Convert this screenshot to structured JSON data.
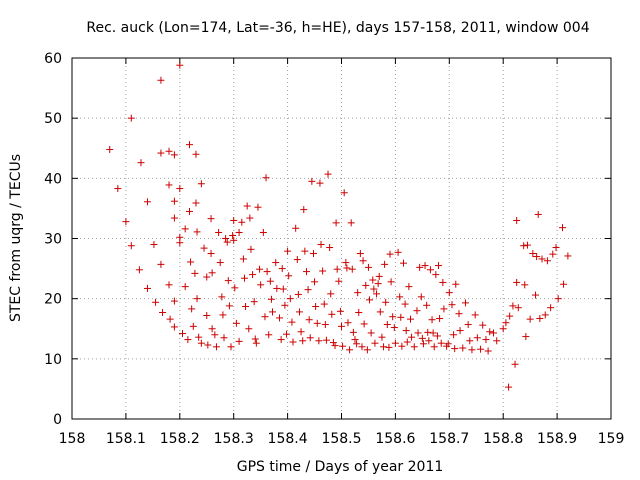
{
  "chart_data": {
    "type": "scatter",
    "title": "Rec. auck (Lon=174, Lat=-36, h=HE), days 157-158, 2011, window 004",
    "xlabel": "GPS time / Days of year 2011",
    "ylabel": "STEC from uqrg / TECUs",
    "xlim": [
      158,
      159
    ],
    "ylim": [
      0,
      60
    ],
    "x_ticks": [
      "158",
      "158.1",
      "158.2",
      "158.3",
      "158.4",
      "158.5",
      "158.6",
      "158.7",
      "158.8",
      "158.9",
      "159"
    ],
    "y_ticks": [
      "0",
      "10",
      "20",
      "30",
      "40",
      "50",
      "60"
    ],
    "grid": true,
    "legend": "none",
    "marker": "+",
    "color": "#cc0000",
    "series": [
      {
        "points": [
          [
            158.07,
            44.8
          ],
          [
            158.085,
            38.3
          ],
          [
            158.1,
            32.8
          ],
          [
            158.11,
            28.8
          ],
          [
            158.11,
            50.0
          ],
          [
            158.125,
            24.8
          ],
          [
            158.128,
            42.6
          ],
          [
            158.14,
            36.1
          ],
          [
            158.14,
            21.7
          ],
          [
            158.152,
            29.0
          ],
          [
            158.155,
            19.4
          ],
          [
            158.165,
            56.3
          ],
          [
            158.165,
            44.2
          ],
          [
            158.165,
            25.7
          ],
          [
            158.168,
            17.7
          ],
          [
            158.18,
            44.5
          ],
          [
            158.18,
            38.9
          ],
          [
            158.18,
            22.3
          ],
          [
            158.182,
            16.6
          ],
          [
            158.19,
            43.9
          ],
          [
            158.19,
            36.2
          ],
          [
            158.19,
            33.4
          ],
          [
            158.19,
            19.6
          ],
          [
            158.19,
            15.3
          ],
          [
            158.2,
            58.8
          ],
          [
            158.2,
            38.3
          ],
          [
            158.2,
            30.2
          ],
          [
            158.2,
            29.3
          ],
          [
            158.205,
            14.2
          ],
          [
            158.21,
            31.6
          ],
          [
            158.21,
            22.0
          ],
          [
            158.215,
            13.2
          ],
          [
            158.218,
            45.6
          ],
          [
            158.218,
            34.5
          ],
          [
            158.22,
            26.1
          ],
          [
            158.222,
            18.3
          ],
          [
            158.225,
            15.4
          ],
          [
            158.228,
            24.2
          ],
          [
            158.23,
            44.0
          ],
          [
            158.23,
            35.9
          ],
          [
            158.232,
            31.1
          ],
          [
            158.232,
            20.0
          ],
          [
            158.235,
            13.6
          ],
          [
            158.24,
            12.6
          ],
          [
            158.24,
            39.1
          ],
          [
            158.245,
            28.4
          ],
          [
            158.25,
            23.6
          ],
          [
            158.25,
            17.2
          ],
          [
            158.252,
            12.3
          ],
          [
            158.258,
            33.3
          ],
          [
            158.258,
            27.5
          ],
          [
            158.26,
            24.3
          ],
          [
            158.26,
            15.0
          ],
          [
            158.265,
            14.0
          ],
          [
            158.268,
            12.0
          ],
          [
            158.272,
            31.0
          ],
          [
            158.275,
            26.0
          ],
          [
            158.278,
            20.3
          ],
          [
            158.28,
            17.3
          ],
          [
            158.282,
            13.5
          ],
          [
            158.285,
            30.0
          ],
          [
            158.288,
            29.4
          ],
          [
            158.29,
            23.0
          ],
          [
            158.292,
            18.8
          ],
          [
            158.295,
            12.0
          ],
          [
            158.298,
            30.5
          ],
          [
            158.3,
            33.0
          ],
          [
            158.3,
            29.7
          ],
          [
            158.302,
            21.8
          ],
          [
            158.305,
            15.9
          ],
          [
            158.31,
            31.0
          ],
          [
            158.31,
            12.9
          ],
          [
            158.315,
            32.7
          ],
          [
            158.318,
            26.6
          ],
          [
            158.32,
            23.4
          ],
          [
            158.322,
            18.7
          ],
          [
            158.325,
            35.4
          ],
          [
            158.328,
            15.0
          ],
          [
            158.33,
            33.4
          ],
          [
            158.332,
            28.2
          ],
          [
            158.335,
            24.0
          ],
          [
            158.338,
            19.5
          ],
          [
            158.34,
            13.3
          ],
          [
            158.342,
            12.6
          ],
          [
            158.345,
            35.2
          ],
          [
            158.348,
            24.9
          ],
          [
            158.35,
            22.3
          ],
          [
            158.355,
            31.0
          ],
          [
            158.358,
            17.0
          ],
          [
            158.36,
            40.1
          ],
          [
            158.362,
            24.5
          ],
          [
            158.365,
            14.0
          ],
          [
            158.368,
            22.9
          ],
          [
            158.37,
            19.9
          ],
          [
            158.372,
            17.8
          ],
          [
            158.378,
            26.0
          ],
          [
            158.38,
            21.7
          ],
          [
            158.385,
            16.8
          ],
          [
            158.388,
            13.2
          ],
          [
            158.39,
            25.0
          ],
          [
            158.392,
            21.6
          ],
          [
            158.395,
            18.9
          ],
          [
            158.398,
            14.1
          ],
          [
            158.4,
            27.9
          ],
          [
            158.402,
            23.8
          ],
          [
            158.405,
            20.0
          ],
          [
            158.408,
            16.1
          ],
          [
            158.41,
            12.8
          ],
          [
            158.415,
            31.7
          ],
          [
            158.418,
            26.5
          ],
          [
            158.42,
            20.7
          ],
          [
            158.422,
            17.8
          ],
          [
            158.425,
            14.5
          ],
          [
            158.428,
            13.0
          ],
          [
            158.43,
            34.8
          ],
          [
            158.432,
            27.9
          ],
          [
            158.435,
            24.5
          ],
          [
            158.438,
            21.5
          ],
          [
            158.44,
            16.5
          ],
          [
            158.442,
            13.5
          ],
          [
            158.445,
            39.5
          ],
          [
            158.448,
            27.5
          ],
          [
            158.45,
            22.8
          ],
          [
            158.452,
            18.7
          ],
          [
            158.455,
            15.9
          ],
          [
            158.458,
            13.0
          ],
          [
            158.46,
            39.2
          ],
          [
            158.462,
            29.0
          ],
          [
            158.465,
            24.6
          ],
          [
            158.468,
            19.1
          ],
          [
            158.47,
            15.7
          ],
          [
            158.472,
            13.1
          ],
          [
            158.475,
            40.7
          ],
          [
            158.478,
            28.5
          ],
          [
            158.48,
            20.8
          ],
          [
            158.482,
            17.4
          ],
          [
            158.485,
            12.7
          ],
          [
            158.488,
            12.2
          ],
          [
            158.49,
            32.6
          ],
          [
            158.492,
            24.9
          ],
          [
            158.495,
            22.9
          ],
          [
            158.498,
            17.9
          ],
          [
            158.5,
            15.4
          ],
          [
            158.502,
            12.1
          ],
          [
            158.505,
            37.6
          ],
          [
            158.508,
            26.0
          ],
          [
            158.51,
            25.1
          ],
          [
            158.512,
            16.0
          ],
          [
            158.515,
            11.5
          ],
          [
            158.518,
            32.6
          ],
          [
            158.52,
            24.9
          ],
          [
            158.522,
            14.4
          ],
          [
            158.525,
            13.2
          ],
          [
            158.528,
            12.5
          ],
          [
            158.53,
            21.0
          ],
          [
            158.532,
            17.7
          ],
          [
            158.535,
            27.5
          ],
          [
            158.538,
            12.0
          ],
          [
            158.54,
            26.3
          ],
          [
            158.542,
            15.8
          ],
          [
            158.545,
            22.2
          ],
          [
            158.548,
            11.5
          ],
          [
            158.55,
            25.2
          ],
          [
            158.552,
            19.8
          ],
          [
            158.555,
            14.3
          ],
          [
            158.558,
            23.1
          ],
          [
            158.56,
            21.6
          ],
          [
            158.562,
            12.6
          ],
          [
            158.565,
            20.8
          ],
          [
            158.568,
            22.5
          ],
          [
            158.57,
            23.7
          ],
          [
            158.572,
            17.8
          ],
          [
            158.575,
            13.6
          ],
          [
            158.578,
            12.0
          ],
          [
            158.58,
            25.7
          ],
          [
            158.582,
            19.4
          ],
          [
            158.585,
            15.7
          ],
          [
            158.588,
            11.9
          ],
          [
            158.59,
            27.4
          ],
          [
            158.592,
            22.8
          ],
          [
            158.595,
            17.0
          ],
          [
            158.598,
            15.2
          ],
          [
            158.6,
            12.6
          ],
          [
            158.605,
            27.7
          ],
          [
            158.608,
            20.3
          ],
          [
            158.61,
            16.9
          ],
          [
            158.612,
            12.1
          ],
          [
            158.615,
            25.9
          ],
          [
            158.618,
            19.1
          ],
          [
            158.62,
            14.7
          ],
          [
            158.622,
            12.8
          ],
          [
            158.625,
            22.0
          ],
          [
            158.628,
            16.6
          ],
          [
            158.63,
            13.6
          ],
          [
            158.635,
            12.0
          ],
          [
            158.64,
            18.0
          ],
          [
            158.642,
            14.3
          ],
          [
            158.645,
            25.2
          ],
          [
            158.648,
            20.3
          ],
          [
            158.65,
            13.4
          ],
          [
            158.652,
            12.5
          ],
          [
            158.655,
            25.5
          ],
          [
            158.658,
            18.9
          ],
          [
            158.66,
            14.4
          ],
          [
            158.662,
            13.0
          ],
          [
            158.665,
            24.8
          ],
          [
            158.668,
            16.5
          ],
          [
            158.67,
            14.3
          ],
          [
            158.672,
            12.0
          ],
          [
            158.675,
            24.0
          ],
          [
            158.678,
            13.8
          ],
          [
            158.68,
            25.5
          ],
          [
            158.682,
            16.7
          ],
          [
            158.685,
            12.6
          ],
          [
            158.688,
            22.7
          ],
          [
            158.69,
            18.3
          ],
          [
            158.695,
            12.1
          ],
          [
            158.698,
            12.5
          ],
          [
            158.7,
            21.0
          ],
          [
            158.705,
            19.0
          ],
          [
            158.708,
            14.0
          ],
          [
            158.71,
            11.7
          ],
          [
            158.712,
            22.4
          ],
          [
            158.718,
            17.5
          ],
          [
            158.72,
            14.7
          ],
          [
            158.725,
            11.8
          ],
          [
            158.73,
            19.3
          ],
          [
            158.735,
            15.7
          ],
          [
            158.738,
            13.0
          ],
          [
            158.742,
            11.5
          ],
          [
            158.748,
            17.3
          ],
          [
            158.752,
            13.5
          ],
          [
            158.758,
            11.6
          ],
          [
            158.762,
            15.6
          ],
          [
            158.768,
            13.2
          ],
          [
            158.772,
            11.3
          ],
          [
            158.775,
            14.5
          ],
          [
            158.782,
            14.3
          ],
          [
            158.788,
            13.0
          ],
          [
            158.8,
            15.0
          ],
          [
            158.805,
            16.0
          ],
          [
            158.81,
            5.3
          ],
          [
            158.812,
            17.1
          ],
          [
            158.818,
            18.8
          ],
          [
            158.822,
            9.1
          ],
          [
            158.825,
            22.7
          ],
          [
            158.825,
            33.0
          ],
          [
            158.828,
            18.5
          ],
          [
            158.838,
            28.8
          ],
          [
            158.84,
            22.3
          ],
          [
            158.842,
            13.7
          ],
          [
            158.845,
            28.9
          ],
          [
            158.85,
            16.6
          ],
          [
            158.855,
            27.5
          ],
          [
            158.86,
            20.6
          ],
          [
            158.862,
            27.0
          ],
          [
            158.865,
            34.0
          ],
          [
            158.868,
            16.7
          ],
          [
            158.872,
            26.6
          ],
          [
            158.878,
            17.3
          ],
          [
            158.882,
            26.3
          ],
          [
            158.888,
            18.5
          ],
          [
            158.892,
            27.4
          ],
          [
            158.898,
            28.5
          ],
          [
            158.902,
            20.0
          ],
          [
            158.91,
            31.8
          ],
          [
            158.912,
            22.4
          ],
          [
            158.92,
            27.1
          ]
        ]
      }
    ]
  }
}
